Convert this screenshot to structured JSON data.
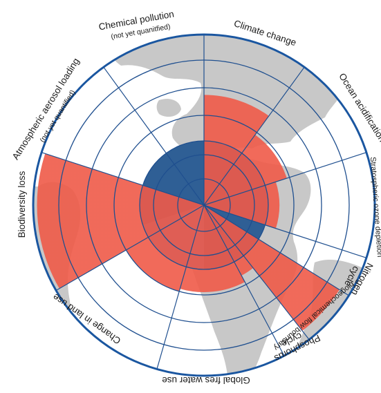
{
  "diagram": {
    "colors": {
      "ocean": "#ffffff",
      "land": "#c8c8c8",
      "safe_zone": "#2f5f95",
      "safe_zone_light": "#4a86c6",
      "exceeded": "#ef5a48",
      "grid": "#1f4f8f",
      "rim": "#1a56a0"
    },
    "categories": [
      {
        "id": "climate-change",
        "label": "Climate change",
        "sublabel": "",
        "quantified": true,
        "level": 0.76
      },
      {
        "id": "ocean-acidification",
        "label": "Ocean acidification",
        "sublabel": "",
        "quantified": true,
        "level": 0.6
      },
      {
        "id": "stratospheric-ozone-depletion",
        "label": "Stratospheric ozone depletion",
        "sublabel": "",
        "quantified": true,
        "level": 0.52
      },
      {
        "id": "nitrogen-cycle",
        "label": "Nitrogen cycle",
        "sublabel": "",
        "quantified": true,
        "level": 1.1
      },
      {
        "id": "phosphorus-cycle",
        "label": "Phosphorus cycle",
        "sublabel": "biogeochemical flow boundary",
        "quantified": true,
        "level": 0.55
      },
      {
        "id": "global-freshwater-use",
        "label": "Global fres water use",
        "sublabel": "",
        "quantified": true,
        "level": 0.6
      },
      {
        "id": "change-in-land-use",
        "label": "Change in land use",
        "sublabel": "",
        "quantified": true,
        "level": 0.62
      },
      {
        "id": "biodiversity-loss",
        "label": "Biodiversity loss",
        "sublabel": "",
        "quantified": true,
        "level": 1.15
      },
      {
        "id": "atmospheric-aerosol-loading",
        "label": "Atmospheric aerosol loading",
        "sublabel": "(not yet quantified)",
        "quantified": false,
        "level": 0
      },
      {
        "id": "chemical-pollution",
        "label": "Chemical pollution",
        "sublabel": "(not yet quanitfied)",
        "quantified": false,
        "level": 0
      }
    ]
  }
}
